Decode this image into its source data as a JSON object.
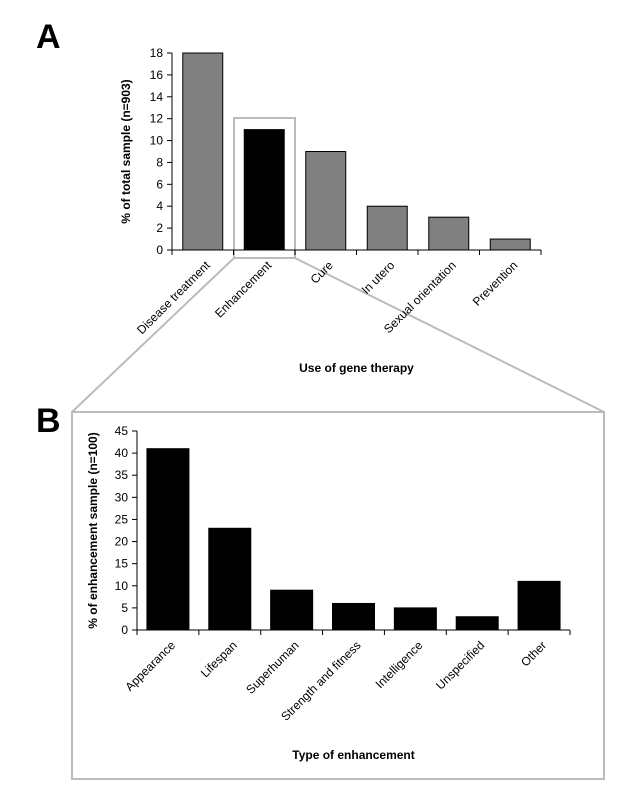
{
  "chart_data": [
    {
      "type": "bar",
      "panel_label": "A",
      "categories": [
        "Disease treatment",
        "Enhancement",
        "Cure",
        "In utero",
        "Sexual orientation",
        "Prevention"
      ],
      "values": [
        18,
        11,
        9,
        4,
        3,
        1
      ],
      "colors": [
        "#808080",
        "#000000",
        "#808080",
        "#808080",
        "#808080",
        "#808080"
      ],
      "xlabel": "Use of gene therapy",
      "ylabel": "% of total sample (n=903)",
      "ylim": [
        0,
        18
      ],
      "yticks": [
        0,
        2,
        4,
        6,
        8,
        10,
        12,
        14,
        16,
        18
      ],
      "grid": false
    },
    {
      "type": "bar",
      "panel_label": "B",
      "categories": [
        "Appearance",
        "Lifespan",
        "Superhuman",
        "Strength and fitness",
        "Intelligence",
        "Unspecified",
        "Other"
      ],
      "values": [
        41,
        23,
        9,
        6,
        5,
        3,
        11
      ],
      "color": "#000000",
      "xlabel": "Type of enhancement",
      "ylabel": "% of enhancement sample (n=100)",
      "ylim": [
        0,
        45
      ],
      "yticks": [
        0,
        5,
        10,
        15,
        20,
        25,
        30,
        35,
        40,
        45
      ],
      "grid": false
    }
  ]
}
